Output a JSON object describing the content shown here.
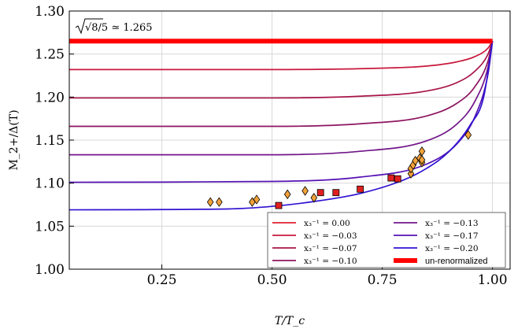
{
  "chart_data": {
    "type": "line",
    "xlabel": "T/T_c",
    "ylabel": "M_2+/Δ(T)",
    "xlim": [
      0.04,
      1.04
    ],
    "ylim": [
      1.0,
      1.3
    ],
    "xticks": [
      0.25,
      0.5,
      0.75,
      1.0
    ],
    "xtick_labels": [
      "0.25",
      "0.50",
      "0.75",
      "1.00"
    ],
    "yticks": [
      1.0,
      1.05,
      1.1,
      1.15,
      1.2,
      1.25,
      1.3
    ],
    "ytick_labels": [
      "1.00",
      "1.05",
      "1.10",
      "1.15",
      "1.20",
      "1.25",
      "1.30"
    ],
    "grid": true,
    "legend_position": "bottom-right",
    "annotation": "√8/5 ≃ 1.265",
    "series": [
      {
        "name": "x₃⁻¹ = 0.00",
        "color": "#e02030",
        "x": [
          0.04,
          0.4,
          0.7,
          0.9,
          0.97,
          1.0
        ],
        "y": [
          1.265,
          1.265,
          1.265,
          1.265,
          1.265,
          1.265
        ]
      },
      {
        "name": "x₃⁻¹ = −0.03",
        "color": "#c8193c",
        "x": [
          0.04,
          0.5,
          0.7,
          0.85,
          0.92,
          0.96,
          0.99,
          1.0
        ],
        "y": [
          1.232,
          1.232,
          1.233,
          1.236,
          1.241,
          1.247,
          1.257,
          1.265
        ]
      },
      {
        "name": "x₃⁻¹ = −0.07",
        "color": "#a8154a",
        "x": [
          0.04,
          0.5,
          0.7,
          0.85,
          0.92,
          0.96,
          0.99,
          1.0
        ],
        "y": [
          1.199,
          1.199,
          1.201,
          1.207,
          1.217,
          1.23,
          1.25,
          1.265
        ]
      },
      {
        "name": "x₃⁻¹ = −0.10",
        "color": "#8e1560",
        "x": [
          0.04,
          0.5,
          0.7,
          0.85,
          0.92,
          0.96,
          0.99,
          1.0
        ],
        "y": [
          1.166,
          1.166,
          1.169,
          1.178,
          1.193,
          1.212,
          1.242,
          1.265
        ]
      },
      {
        "name": "x₃⁻¹ = −0.13",
        "color": "#72168a",
        "x": [
          0.04,
          0.5,
          0.7,
          0.85,
          0.92,
          0.96,
          0.99,
          1.0
        ],
        "y": [
          1.133,
          1.133,
          1.137,
          1.149,
          1.169,
          1.195,
          1.235,
          1.265
        ]
      },
      {
        "name": "x₃⁻¹ = −0.17",
        "color": "#5512b4",
        "x": [
          0.04,
          0.5,
          0.7,
          0.85,
          0.92,
          0.96,
          0.99,
          1.0
        ],
        "y": [
          1.101,
          1.102,
          1.107,
          1.122,
          1.146,
          1.177,
          1.227,
          1.265
        ]
      },
      {
        "name": "x₃⁻¹ = −0.20",
        "color": "#3012d2",
        "x": [
          0.04,
          0.4,
          0.5,
          0.6,
          0.7,
          0.8,
          0.85,
          0.9,
          0.95,
          0.98,
          1.0
        ],
        "y": [
          1.069,
          1.07,
          1.073,
          1.079,
          1.088,
          1.104,
          1.117,
          1.136,
          1.168,
          1.2,
          1.265
        ]
      },
      {
        "name": "un-renormalized",
        "color": "#ff0000",
        "x": [
          0.04,
          1.0
        ],
        "y": [
          1.265,
          1.265
        ],
        "thick": true
      }
    ],
    "diamonds": {
      "color": "#f2a23a",
      "x": [
        0.36,
        0.38,
        0.455,
        0.465,
        0.535,
        0.575,
        0.595,
        0.815,
        0.815,
        0.82,
        0.825,
        0.835,
        0.84,
        0.84,
        0.84,
        0.945
      ],
      "y": [
        1.078,
        1.078,
        1.078,
        1.081,
        1.087,
        1.091,
        1.083,
        1.111,
        1.117,
        1.121,
        1.126,
        1.129,
        1.137,
        1.124,
        1.127,
        1.156
      ]
    },
    "squares": {
      "color": "#e02020",
      "x": [
        0.515,
        0.61,
        0.645,
        0.7,
        0.77,
        0.785
      ],
      "y": [
        1.074,
        1.089,
        1.089,
        1.093,
        1.106,
        1.105
      ]
    }
  }
}
